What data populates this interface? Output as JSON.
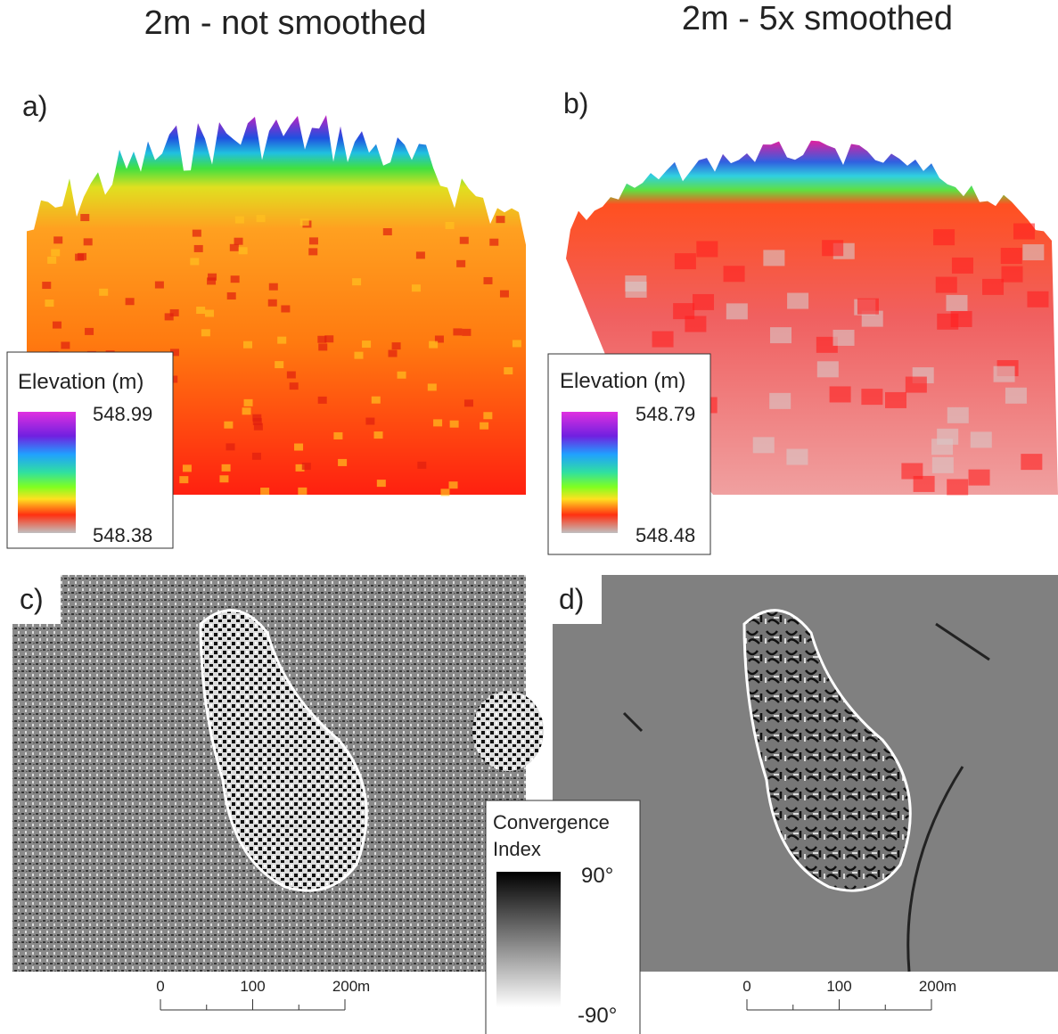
{
  "columns": [
    {
      "title": "2m - not smoothed"
    },
    {
      "title": "2m - 5x smoothed"
    }
  ],
  "panels": [
    {
      "label": "a)"
    },
    {
      "label": "b)"
    },
    {
      "label": "c)"
    },
    {
      "label": "d)"
    }
  ],
  "elevation_legends": [
    {
      "title": "Elevation (m)",
      "max": "548.99",
      "min": "548.38"
    },
    {
      "title": "Elevation (m)",
      "max": "548.79",
      "min": "548.48"
    }
  ],
  "convergence_legend": {
    "title_lines": [
      "Convergence",
      "Index"
    ],
    "max": "90°",
    "min": "-90°"
  },
  "scale_bars": [
    {
      "ticks": [
        "0",
        "100",
        "200"
      ],
      "unit": "m"
    },
    {
      "ticks": [
        "0",
        "100",
        "200"
      ],
      "unit": "m"
    }
  ]
}
